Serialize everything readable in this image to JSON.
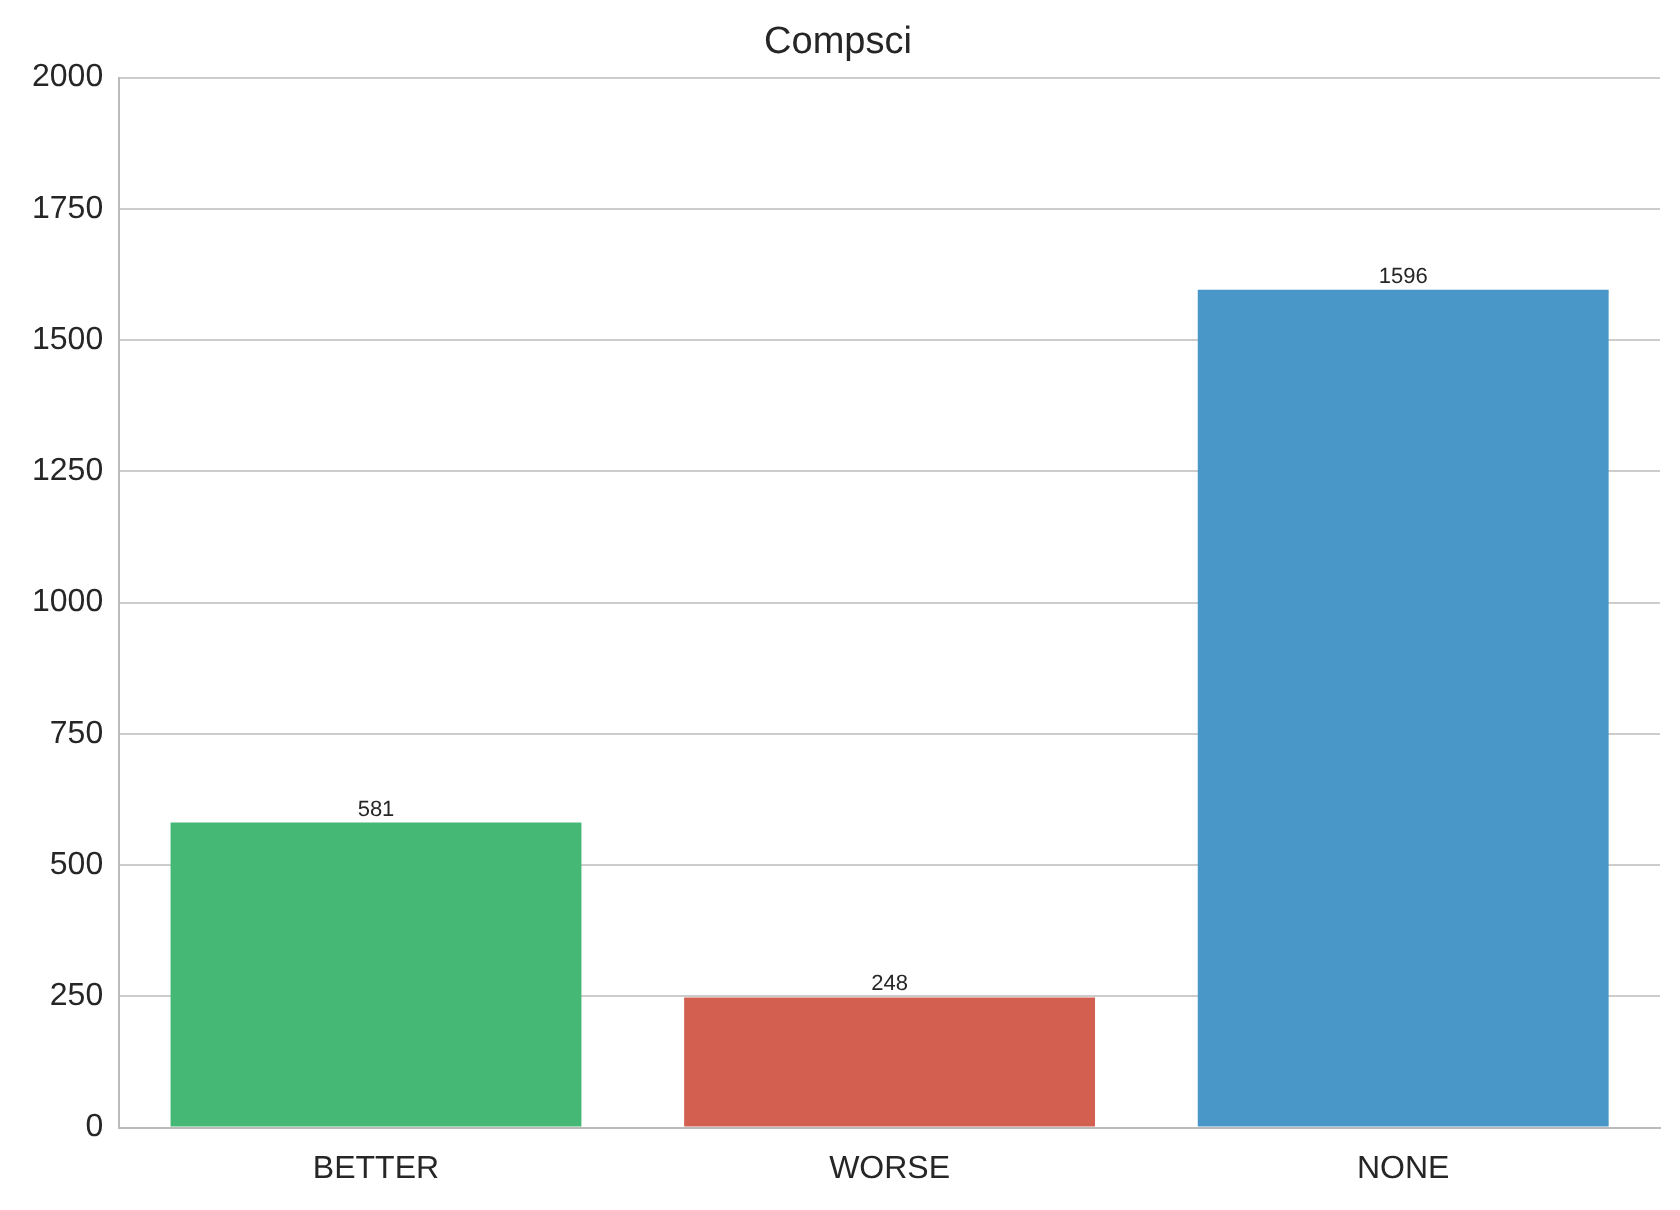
{
  "chart_data": {
    "type": "bar",
    "title": "Compsci",
    "categories": [
      "BETTER",
      "WORSE",
      "NONE"
    ],
    "values": [
      581,
      248,
      1596
    ],
    "colors": [
      "#44b874",
      "#d35f50",
      "#4996c9"
    ],
    "ylim": [
      0,
      2000
    ],
    "yticks": [
      0,
      250,
      500,
      750,
      1000,
      1250,
      1500,
      1750,
      2000
    ],
    "grid": "y",
    "data_labels": true
  }
}
